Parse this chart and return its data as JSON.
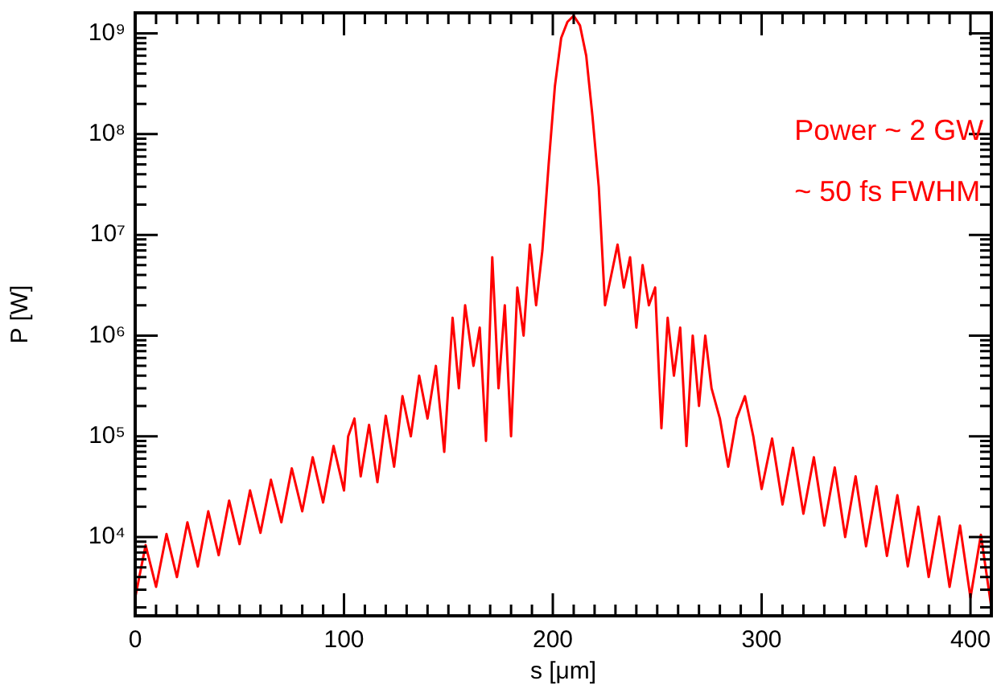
{
  "chart_data": {
    "type": "line",
    "xlabel": "s [μm]",
    "ylabel": "P [W]",
    "log": "y",
    "grid": false,
    "legend": false,
    "marker": "none",
    "line_style": "solid",
    "annotations": [
      "Power ~ 2 GW",
      "~ 50 fs FWHM"
    ],
    "xlim": [
      0,
      410
    ],
    "ylim": [
      1650,
      1600000000
    ],
    "xticks": [
      0,
      {
        "value": 10,
        "label": null
      },
      {
        "value": 20,
        "label": null
      },
      {
        "value": 30,
        "label": null
      },
      {
        "value": 40,
        "label": null
      },
      {
        "value": 50,
        "label": null
      },
      {
        "value": 60,
        "label": null
      },
      {
        "value": 70,
        "label": null
      },
      {
        "value": 80,
        "label": null
      },
      {
        "value": 90,
        "label": null
      },
      100,
      {
        "value": 110,
        "label": null
      },
      {
        "value": 120,
        "label": null
      },
      {
        "value": 130,
        "label": null
      },
      {
        "value": 140,
        "label": null
      },
      {
        "value": 150,
        "label": null
      },
      {
        "value": 160,
        "label": null
      },
      {
        "value": 170,
        "label": null
      },
      {
        "value": 180,
        "label": null
      },
      {
        "value": 190,
        "label": null
      },
      200,
      {
        "value": 210,
        "label": null
      },
      {
        "value": 220,
        "label": null
      },
      {
        "value": 230,
        "label": null
      },
      {
        "value": 240,
        "label": null
      },
      {
        "value": 250,
        "label": null
      },
      {
        "value": 260,
        "label": null
      },
      {
        "value": 270,
        "label": null
      },
      {
        "value": 280,
        "label": null
      },
      {
        "value": 290,
        "label": null
      },
      300,
      {
        "value": 310,
        "label": null
      },
      {
        "value": 320,
        "label": null
      },
      {
        "value": 330,
        "label": null
      },
      {
        "value": 340,
        "label": null
      },
      {
        "value": 350,
        "label": null
      },
      {
        "value": 360,
        "label": null
      },
      {
        "value": 370,
        "label": null
      },
      {
        "value": 380,
        "label": null
      },
      {
        "value": 390,
        "label": null
      },
      400
    ],
    "yticks": [
      {
        "value": 2000,
        "label": null
      },
      {
        "value": 3000,
        "label": null
      },
      {
        "value": 4000,
        "label": null
      },
      {
        "value": 5000,
        "label": null
      },
      {
        "value": 6000,
        "label": null
      },
      {
        "value": 7000,
        "label": null
      },
      {
        "value": 8000,
        "label": null
      },
      {
        "value": 9000,
        "label": null
      },
      {
        "value": 10000,
        "label": "10⁴"
      },
      {
        "value": 20000,
        "label": null
      },
      {
        "value": 30000,
        "label": null
      },
      {
        "value": 40000,
        "label": null
      },
      {
        "value": 50000,
        "label": null
      },
      {
        "value": 60000,
        "label": null
      },
      {
        "value": 70000,
        "label": null
      },
      {
        "value": 80000,
        "label": null
      },
      {
        "value": 90000,
        "label": null
      },
      {
        "value": 100000,
        "label": "10⁵"
      },
      {
        "value": 200000,
        "label": null
      },
      {
        "value": 300000,
        "label": null
      },
      {
        "value": 400000,
        "label": null
      },
      {
        "value": 500000,
        "label": null
      },
      {
        "value": 600000,
        "label": null
      },
      {
        "value": 700000,
        "label": null
      },
      {
        "value": 800000,
        "label": null
      },
      {
        "value": 900000,
        "label": null
      },
      {
        "value": 1000000,
        "label": "10⁶"
      },
      {
        "value": 2000000,
        "label": null
      },
      {
        "value": 3000000,
        "label": null
      },
      {
        "value": 4000000,
        "label": null
      },
      {
        "value": 5000000,
        "label": null
      },
      {
        "value": 6000000,
        "label": null
      },
      {
        "value": 7000000,
        "label": null
      },
      {
        "value": 8000000,
        "label": null
      },
      {
        "value": 9000000,
        "label": null
      },
      {
        "value": 10000000,
        "label": "10⁷"
      },
      {
        "value": 20000000,
        "label": null
      },
      {
        "value": 30000000,
        "label": null
      },
      {
        "value": 40000000,
        "label": null
      },
      {
        "value": 50000000,
        "label": null
      },
      {
        "value": 60000000,
        "label": null
      },
      {
        "value": 70000000,
        "label": null
      },
      {
        "value": 80000000,
        "label": null
      },
      {
        "value": 90000000,
        "label": null
      },
      {
        "value": 100000000,
        "label": "10⁸"
      },
      {
        "value": 200000000,
        "label": null
      },
      {
        "value": 300000000,
        "label": null
      },
      {
        "value": 400000000,
        "label": null
      },
      {
        "value": 500000000,
        "label": null
      },
      {
        "value": 600000000,
        "label": null
      },
      {
        "value": 700000000,
        "label": null
      },
      {
        "value": 800000000,
        "label": null
      },
      {
        "value": 900000000,
        "label": null
      },
      {
        "value": 1000000000,
        "label": "10⁹"
      }
    ],
    "x": [
      0,
      5,
      10,
      15,
      20,
      25,
      30,
      35,
      40,
      45,
      50,
      55,
      60,
      65,
      70,
      75,
      80,
      85,
      90,
      95,
      100,
      102,
      105,
      108,
      112,
      116,
      120,
      124,
      128,
      132,
      136,
      140,
      144,
      148,
      152,
      155,
      158,
      162,
      165,
      168,
      171,
      174,
      177,
      180,
      183,
      186,
      189,
      192,
      195,
      198,
      201,
      204,
      207,
      210,
      213,
      216,
      219,
      222,
      225,
      228,
      231,
      234,
      237,
      240,
      243,
      246,
      249,
      252,
      255,
      258,
      261,
      264,
      267,
      270,
      273,
      276,
      280,
      284,
      288,
      292,
      296,
      300,
      305,
      310,
      315,
      320,
      325,
      330,
      335,
      340,
      345,
      350,
      355,
      360,
      365,
      370,
      375,
      380,
      385,
      390,
      395,
      400,
      405,
      410
    ],
    "series": [
      {
        "color": "#ff0000",
        "values": [
          2500,
          8300,
          3200,
          10700,
          4000,
          14000,
          5100,
          18000,
          6600,
          23000,
          8500,
          29000,
          11000,
          37000,
          14000,
          48000,
          18000,
          62000,
          22000,
          80000,
          29000,
          100000,
          150000,
          40000,
          130000,
          35000,
          160000,
          50000,
          250000,
          100000,
          400000,
          150000,
          500000,
          70000,
          1500000,
          300000,
          2000000,
          500000,
          1200000,
          90000,
          6000000,
          300000,
          2000000,
          100000,
          3000000,
          1000000,
          8000000,
          2000000,
          7000000,
          50000000,
          300000000,
          900000000,
          1300000000,
          1500000000,
          1200000000,
          600000000,
          150000000,
          30000000,
          2000000,
          4000000,
          8000000,
          3000000,
          6000000,
          1200000,
          5000000,
          2000000,
          3000000,
          120000,
          1500000,
          400000,
          1200000,
          80000,
          1000000,
          200000,
          1000000,
          300000,
          150000,
          50000,
          150000,
          250000,
          100000,
          30000,
          95000,
          21000,
          77000,
          17000,
          62000,
          13000,
          49000,
          10000,
          40000,
          8100,
          32000,
          6500,
          26000,
          5100,
          20000,
          4000,
          16000,
          3200,
          13000,
          2500,
          10500,
          2000
        ]
      }
    ]
  }
}
